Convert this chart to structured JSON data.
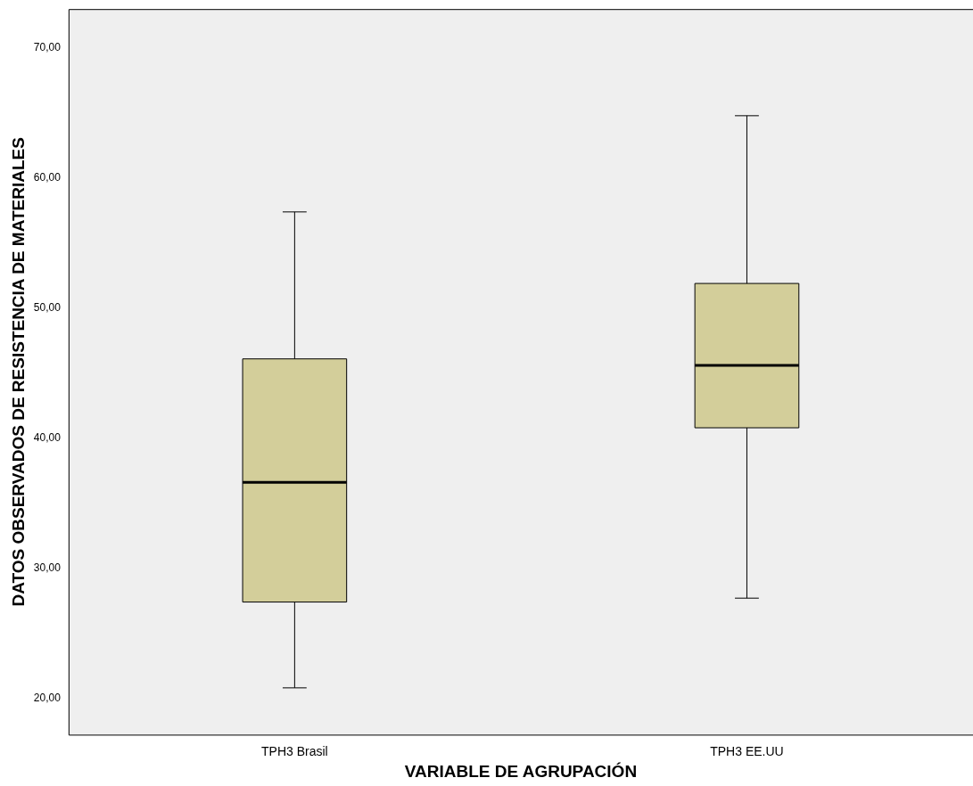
{
  "chart_data": {
    "type": "box",
    "xlabel": "VARIABLE DE AGRUPACIÓN",
    "ylabel": "DATOS OBSERVADOS DE RESISTENCIA DE MATERIALES",
    "categories": [
      "TPH3 Brasil",
      "TPH3 EE.UU"
    ],
    "series": [
      {
        "color": "#d3ce9a",
        "boxes": [
          {
            "low": 20.8,
            "q1": 27.4,
            "median": 36.6,
            "q3": 46.1,
            "high": 57.4
          },
          {
            "low": 27.7,
            "q1": 40.8,
            "median": 45.6,
            "q3": 51.9,
            "high": 64.8
          }
        ]
      }
    ],
    "ylim": [
      17.2,
      73
    ],
    "yticks": [
      {
        "value": 20,
        "label": "20,00"
      },
      {
        "value": 30,
        "label": "30,00"
      },
      {
        "value": 40,
        "label": "40,00"
      },
      {
        "value": 50,
        "label": "50,00"
      },
      {
        "value": 60,
        "label": "60,00"
      },
      {
        "value": 70,
        "label": "70,00"
      }
    ]
  }
}
